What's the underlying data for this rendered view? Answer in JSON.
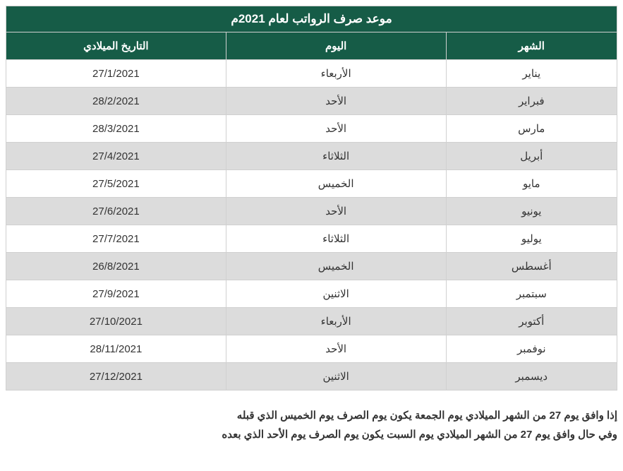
{
  "table": {
    "type": "table",
    "title": "موعد صرف الرواتب لعام 2021م",
    "title_bg": "#165c47",
    "title_color": "#ffffff",
    "title_fontsize": 17,
    "header_bg": "#165c47",
    "header_color": "#ffffff",
    "header_fontsize": 15,
    "row_odd_bg": "#ffffff",
    "row_even_bg": "#dcdcdc",
    "cell_color": "#333333",
    "cell_fontsize": 15,
    "border_color": "#d0d0d0",
    "columns": [
      {
        "key": "month",
        "label": "الشهر",
        "width": "28%"
      },
      {
        "key": "day",
        "label": "اليوم",
        "width": "36%"
      },
      {
        "key": "date",
        "label": "التاريخ الميلادي",
        "width": "36%"
      }
    ],
    "rows": [
      {
        "month": "يناير",
        "day": "الأربعاء",
        "date": "27/1/2021"
      },
      {
        "month": "فبراير",
        "day": "الأحد",
        "date": "28/2/2021"
      },
      {
        "month": "مارس",
        "day": "الأحد",
        "date": "28/3/2021"
      },
      {
        "month": "أبريل",
        "day": "الثلاثاء",
        "date": "27/4/2021"
      },
      {
        "month": "مايو",
        "day": "الخميس",
        "date": "27/5/2021"
      },
      {
        "month": "يونيو",
        "day": "الأحد",
        "date": "27/6/2021"
      },
      {
        "month": "يوليو",
        "day": "الثلاثاء",
        "date": "27/7/2021"
      },
      {
        "month": "أغسطس",
        "day": "الخميس",
        "date": "26/8/2021"
      },
      {
        "month": "سبتمبر",
        "day": "الاثنين",
        "date": "27/9/2021"
      },
      {
        "month": "أكتوبر",
        "day": "الأربعاء",
        "date": "27/10/2021"
      },
      {
        "month": "نوفمبر",
        "day": "الأحد",
        "date": "28/11/2021"
      },
      {
        "month": "ديسمبر",
        "day": "الاثنين",
        "date": "27/12/2021"
      }
    ]
  },
  "notes": [
    "إذا وافق يوم 27 من الشهر الميلادي يوم الجمعة يكون يوم الصرف يوم الخميس الذي قبله",
    "وفي حال وافق يوم 27 من الشهر الميلادي يوم السبت يكون يوم الصرف يوم الأحد الذي بعده"
  ],
  "notes_color": "#333333",
  "notes_fontsize": 15
}
